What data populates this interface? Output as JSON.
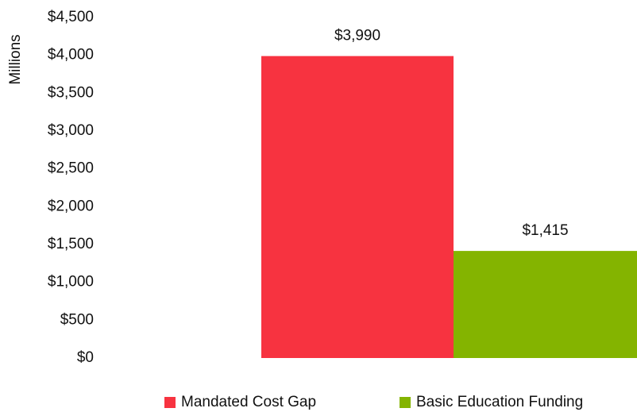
{
  "chart_data": {
    "type": "bar",
    "y_axis_label": "Millions",
    "categories": [
      null
    ],
    "series": [
      {
        "name": "Mandated Cost Gap",
        "color": "#f73340",
        "values": [
          3990
        ],
        "value_labels": [
          "$3,990"
        ]
      },
      {
        "name": "Basic Education Funding",
        "color": "#84b400",
        "values": [
          1415
        ],
        "value_labels": [
          "$1,415"
        ]
      }
    ],
    "ylim": [
      0,
      4500
    ],
    "yticks": [
      {
        "value": 0,
        "label": "$0"
      },
      {
        "value": 500,
        "label": "$500"
      },
      {
        "value": 1000,
        "label": "$1,000"
      },
      {
        "value": 1500,
        "label": "$1,500"
      },
      {
        "value": 2000,
        "label": "$2,000"
      },
      {
        "value": 2500,
        "label": "$2,500"
      },
      {
        "value": 3000,
        "label": "$3,000"
      },
      {
        "value": 3500,
        "label": "$3,500"
      },
      {
        "value": 4000,
        "label": "$4,000"
      },
      {
        "value": 4500,
        "label": "$4,500"
      }
    ],
    "grid": false,
    "legend": "bottom"
  }
}
